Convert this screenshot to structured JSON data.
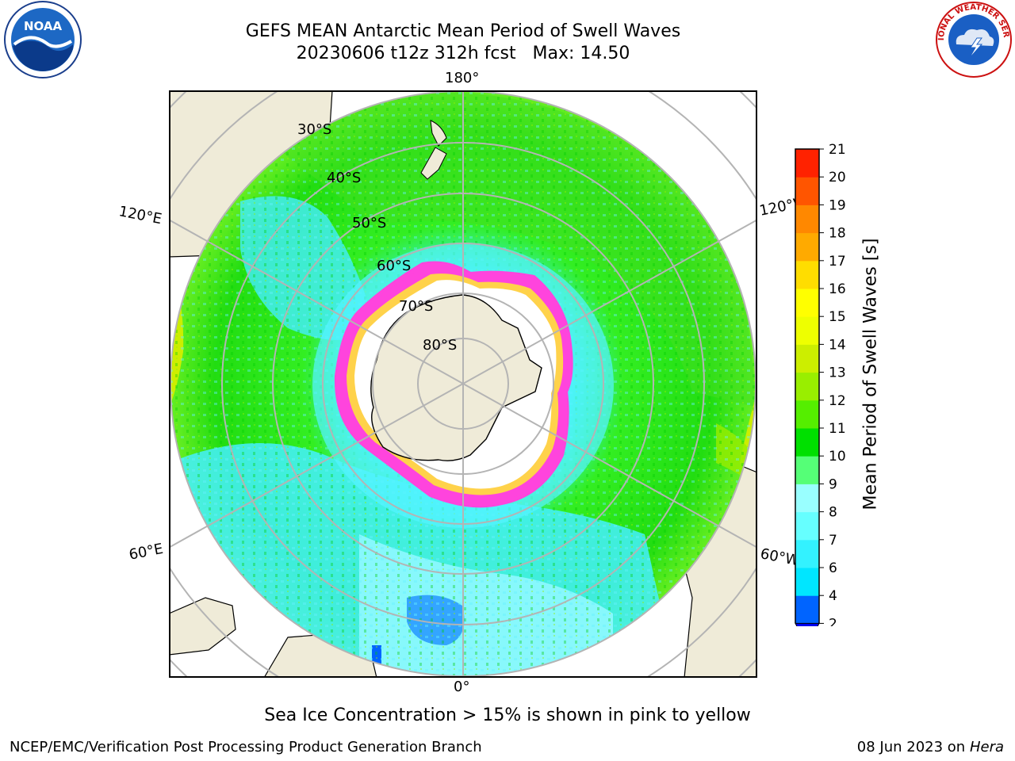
{
  "header": {
    "title": "GEFS MEAN Antarctic Mean Period of Swell Waves",
    "subtitle": "20230606 t12z 312h fcst   Max: 14.50"
  },
  "logos": {
    "left": {
      "icon": "noaa-logo",
      "text": "NOAA"
    },
    "right": {
      "icon": "national-weather-service-logo",
      "text": "NATIONAL WEATHER SERVICE"
    }
  },
  "map": {
    "projection": "south-polar-stereographic",
    "longitude_labels": {
      "top": "180°",
      "bottom": "0°",
      "upper_left": "120°E",
      "upper_right": "120°W",
      "lower_left": "60°E",
      "lower_right": "60°W"
    },
    "latitude_labels": [
      "30°S",
      "40°S",
      "50°S",
      "60°S",
      "70°S",
      "80°S"
    ],
    "colors": {
      "land": "#efebd8",
      "grid": "#b4b4b4",
      "sea_ice": "#ff44dd",
      "antarctic_ice_shelf": "#ffffff"
    }
  },
  "colorbar": {
    "label": "Mean Period of Swell Waves [s]",
    "ticks": [
      "2",
      "4",
      "6",
      "7",
      "8",
      "9",
      "10",
      "11",
      "12",
      "13",
      "14",
      "15",
      "16",
      "17",
      "18",
      "19",
      "20",
      "21"
    ],
    "colors": [
      "#0064ff",
      "#00e6ff",
      "#33f2ff",
      "#66ffff",
      "#99ffff",
      "#55ff77",
      "#00e000",
      "#55ee00",
      "#99ee00",
      "#ccee00",
      "#eeff00",
      "#ffff00",
      "#ffdd00",
      "#ffaa00",
      "#ff8800",
      "#ff5500",
      "#ff2200",
      "#ff0000"
    ],
    "under_color": "#0000ee"
  },
  "footer": {
    "note": "Sea Ice Concentration > 15% is shown in pink to yellow",
    "credit": "NCEP/EMC/Verification Post Processing Product Generation Branch",
    "date": "08 Jun 2023 on",
    "machine": "Hera"
  }
}
